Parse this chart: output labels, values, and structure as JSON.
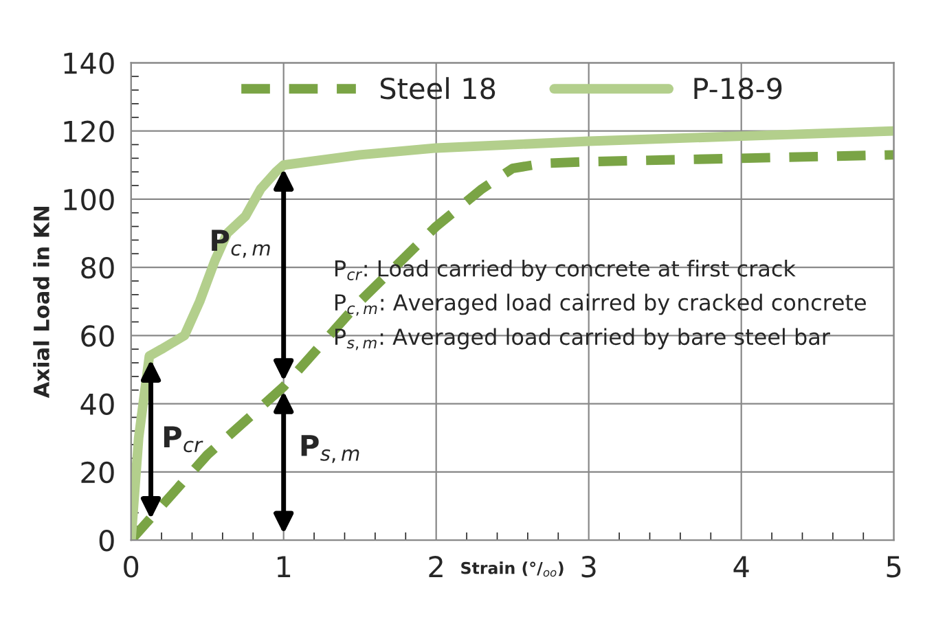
{
  "chart_data": {
    "type": "line",
    "xlabel": "Strain (°/$_{oo}$)",
    "ylabel": "Axial Load in KN",
    "xlim": [
      0,
      5
    ],
    "xticks": [
      0,
      1,
      2,
      3,
      4,
      5
    ],
    "ylim": [
      0,
      140
    ],
    "yticks": [
      0,
      20,
      40,
      60,
      80,
      100,
      120,
      140
    ],
    "grid": true,
    "legend": "top",
    "marker": "none",
    "series": [
      {
        "name": "Steel 18",
        "color": "#7aa445",
        "line_style": "dashed",
        "x": [
          0,
          0.1,
          0.5,
          1,
          1.5,
          2,
          2.3,
          2.5,
          2.7,
          3,
          4,
          5
        ],
        "values": [
          0,
          5,
          25,
          45,
          70,
          92,
          103,
          109,
          110.5,
          111,
          112,
          113
        ]
      },
      {
        "name": "P-18-9",
        "color": "#b3cf8c",
        "line_style": "solid",
        "x": [
          0,
          0.05,
          0.12,
          0.2,
          0.35,
          0.45,
          0.55,
          0.63,
          0.75,
          0.85,
          0.95,
          1,
          1.5,
          2,
          3,
          4,
          5
        ],
        "values": [
          0,
          30,
          54,
          56,
          60,
          70,
          82,
          90,
          95,
          103,
          108,
          110,
          113,
          115,
          117,
          118.5,
          120
        ]
      }
    ],
    "annotations": [
      "P$_{cr}$",
      "P$_{c,m}$",
      "P$_{s,m}$",
      "P$_{cr}$: Load carried by concrete at first crack",
      "P$_{c,m}$: Averaged load cairred by cracked concrete",
      "P$_{s,m}$: Averaged load carried by bare steel bar"
    ]
  }
}
